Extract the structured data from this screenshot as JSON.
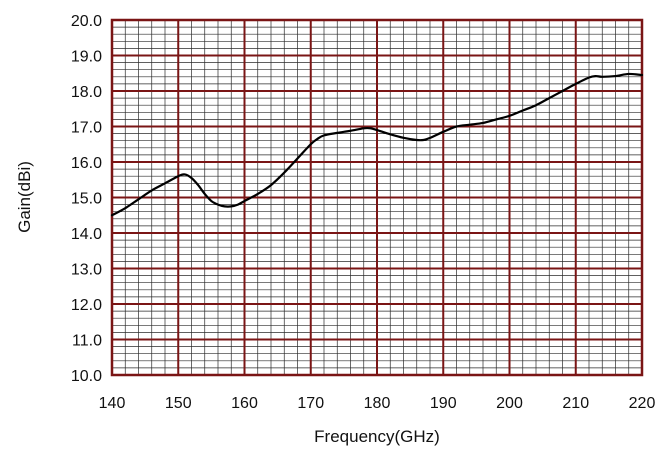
{
  "chart_data": {
    "type": "line",
    "title": "",
    "xlabel": "Frequency(GHz)",
    "ylabel": "Gain(dBi)",
    "xlim": [
      140,
      220
    ],
    "ylim": [
      10.0,
      20.0
    ],
    "x_ticks": [
      140,
      150,
      160,
      170,
      180,
      190,
      200,
      210,
      220
    ],
    "x_tick_labels": [
      "140",
      "150",
      "160",
      "170",
      "180",
      "190",
      "200",
      "210",
      "220"
    ],
    "y_ticks": [
      10.0,
      11.0,
      12.0,
      13.0,
      14.0,
      15.0,
      16.0,
      17.0,
      18.0,
      19.0,
      20.0
    ],
    "y_tick_labels": [
      "10.0",
      "11.0",
      "12.0",
      "13.0",
      "14.0",
      "15.0",
      "16.0",
      "17.0",
      "18.0",
      "19.0",
      "20.0"
    ],
    "grid": true,
    "legend": "none",
    "series": [
      {
        "x": [
          140,
          142,
          144,
          146,
          148,
          150,
          151,
          152,
          153,
          154,
          155,
          156,
          157,
          158,
          159,
          160,
          162,
          164,
          166,
          168,
          170,
          171,
          172,
          174,
          176,
          178,
          179,
          180,
          182,
          184,
          186,
          187,
          188,
          190,
          192,
          194,
          196,
          198,
          200,
          202,
          204,
          206,
          208,
          210,
          212,
          213,
          214,
          216,
          218,
          220
        ],
        "y": [
          14.5,
          14.7,
          14.95,
          15.2,
          15.4,
          15.6,
          15.65,
          15.55,
          15.35,
          15.1,
          14.9,
          14.8,
          14.75,
          14.75,
          14.8,
          14.9,
          15.1,
          15.35,
          15.7,
          16.1,
          16.5,
          16.65,
          16.75,
          16.82,
          16.88,
          16.95,
          16.95,
          16.9,
          16.78,
          16.68,
          16.62,
          16.62,
          16.68,
          16.85,
          17.0,
          17.05,
          17.1,
          17.2,
          17.3,
          17.45,
          17.6,
          17.8,
          18.0,
          18.2,
          18.38,
          18.42,
          18.4,
          18.42,
          18.48,
          18.45
        ]
      }
    ],
    "colors": {
      "plot_background": "#ffffff",
      "minor_grid": "#2b2b2b",
      "major_grid": "#7a1515",
      "frame": "#7a1515",
      "line": "#000000"
    }
  }
}
